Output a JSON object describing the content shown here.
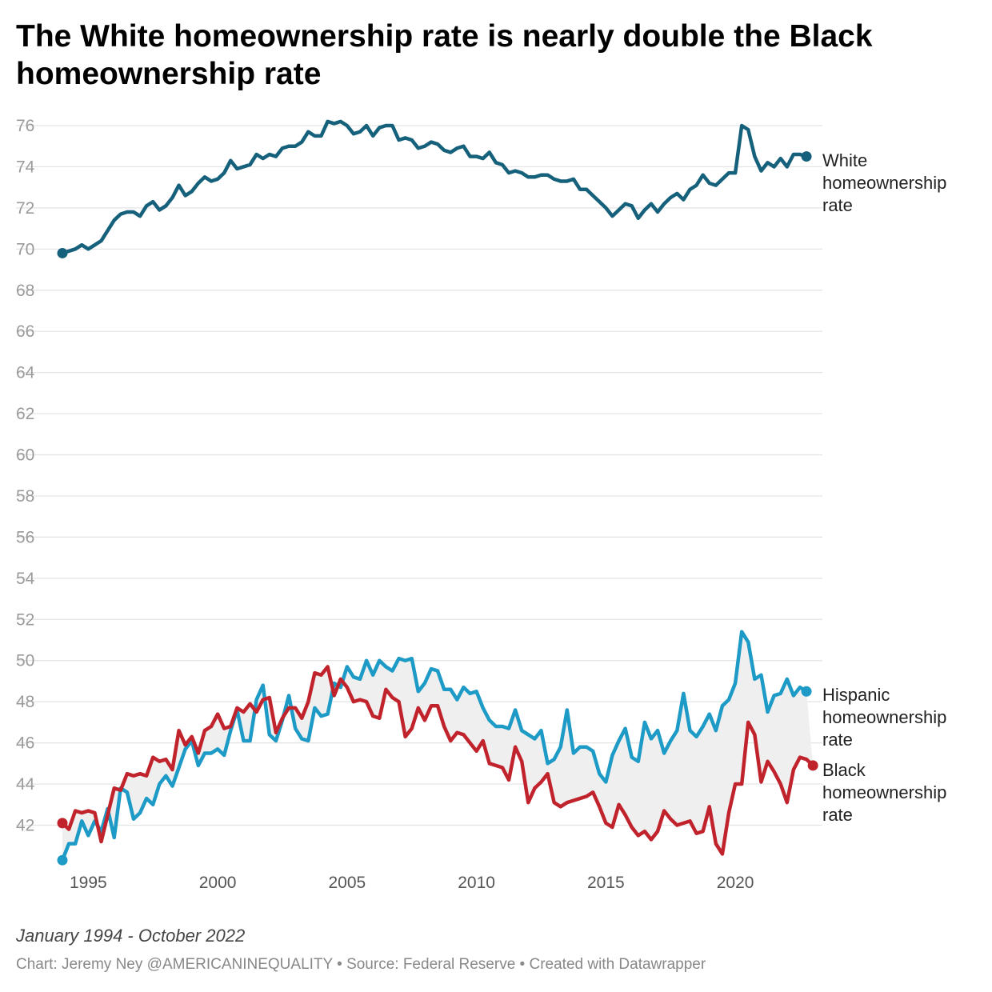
{
  "chart_data": {
    "type": "line",
    "title": "The White homeownership rate is nearly double the Black homeownership rate",
    "subtitle": "January 1994 - October 2022",
    "footer": "Chart: Jeremy Ney @AMERICANINEQUALITY • Source: Federal Reserve • Created with Datawrapper",
    "x_start": 1994.0,
    "x_step": 0.25,
    "xlim": [
      1994.0,
      2022.75
    ],
    "ylim": [
      40.0,
      76.5
    ],
    "y_ticks": [
      42,
      44,
      46,
      48,
      50,
      52,
      54,
      56,
      58,
      60,
      62,
      64,
      66,
      68,
      70,
      72,
      74,
      76
    ],
    "x_ticks": [
      1995,
      2000,
      2005,
      2010,
      2015,
      2020
    ],
    "x_tick_labels": [
      "1995",
      "2000",
      "2005",
      "2010",
      "2015",
      "2020"
    ],
    "gap_fill_between": [
      "Hispanic homeownership rate",
      "Black homeownership rate"
    ],
    "series": [
      {
        "name": "White homeownership rate",
        "label_lines": [
          "White",
          "homeownership",
          "rate"
        ],
        "color": "#15607a",
        "values": [
          69.8,
          69.9,
          70.0,
          70.2,
          70.0,
          70.2,
          70.4,
          70.9,
          71.4,
          71.7,
          71.8,
          71.8,
          71.6,
          72.1,
          72.3,
          71.9,
          72.1,
          72.5,
          73.1,
          72.6,
          72.8,
          73.2,
          73.5,
          73.3,
          73.4,
          73.7,
          74.3,
          73.9,
          74.0,
          74.1,
          74.6,
          74.4,
          74.6,
          74.5,
          74.9,
          75.0,
          75.0,
          75.2,
          75.7,
          75.5,
          75.5,
          76.2,
          76.1,
          76.2,
          76.0,
          75.6,
          75.7,
          76.0,
          75.5,
          75.9,
          76.0,
          76.0,
          75.3,
          75.4,
          75.3,
          74.9,
          75.0,
          75.2,
          75.1,
          74.8,
          74.7,
          74.9,
          75.0,
          74.5,
          74.5,
          74.4,
          74.7,
          74.2,
          74.1,
          73.7,
          73.8,
          73.7,
          73.5,
          73.5,
          73.6,
          73.6,
          73.4,
          73.3,
          73.3,
          73.4,
          72.9,
          72.9,
          72.6,
          72.3,
          72.0,
          71.6,
          71.9,
          72.2,
          72.1,
          71.5,
          71.9,
          72.2,
          71.8,
          72.2,
          72.5,
          72.7,
          72.4,
          72.9,
          73.1,
          73.6,
          73.2,
          73.1,
          73.4,
          73.7,
          73.7,
          76.0,
          75.8,
          74.5,
          73.8,
          74.2,
          74.0,
          74.4,
          74.0,
          74.6,
          74.6,
          74.5
        ]
      },
      {
        "name": "Hispanic homeownership rate",
        "label_lines": [
          "Hispanic",
          "homeownership",
          "rate"
        ],
        "color": "#1d9ac5",
        "values": [
          40.3,
          41.1,
          41.1,
          42.2,
          41.5,
          42.2,
          41.7,
          42.8,
          41.4,
          43.8,
          43.6,
          42.3,
          42.6,
          43.3,
          43.0,
          44.0,
          44.4,
          43.9,
          44.8,
          45.7,
          46.1,
          44.9,
          45.5,
          45.5,
          45.7,
          45.4,
          46.6,
          47.6,
          46.1,
          46.1,
          48.1,
          48.8,
          46.4,
          46.1,
          47.1,
          48.3,
          46.7,
          46.2,
          46.1,
          47.7,
          47.3,
          47.4,
          48.9,
          48.7,
          49.7,
          49.2,
          49.1,
          50.0,
          49.3,
          50.0,
          49.7,
          49.5,
          50.1,
          50.0,
          50.1,
          48.5,
          48.9,
          49.6,
          49.5,
          48.6,
          48.6,
          48.1,
          48.7,
          48.4,
          48.5,
          47.7,
          47.1,
          46.8,
          46.8,
          46.7,
          47.6,
          46.6,
          46.4,
          46.2,
          46.6,
          45.0,
          45.2,
          45.8,
          47.6,
          45.5,
          45.8,
          45.8,
          45.6,
          44.5,
          44.1,
          45.4,
          46.1,
          46.7,
          45.3,
          45.1,
          47.0,
          46.2,
          46.6,
          45.5,
          46.1,
          46.6,
          48.4,
          46.6,
          46.3,
          46.8,
          47.4,
          46.6,
          47.8,
          48.1,
          48.9,
          51.4,
          50.9,
          49.1,
          49.3,
          47.5,
          48.3,
          48.4,
          49.1,
          48.3,
          48.7,
          48.5
        ]
      },
      {
        "name": "Black homeownership rate",
        "label_lines": [
          "Black",
          "homeownership",
          "rate"
        ],
        "color": "#c0232c",
        "values": [
          42.1,
          41.8,
          42.7,
          42.6,
          42.7,
          42.6,
          41.2,
          42.5,
          43.8,
          43.7,
          44.5,
          44.4,
          44.5,
          44.4,
          45.3,
          45.1,
          45.2,
          44.7,
          46.6,
          45.9,
          46.3,
          45.5,
          46.6,
          46.8,
          47.4,
          46.7,
          46.8,
          47.7,
          47.5,
          47.9,
          47.5,
          48.1,
          48.2,
          46.5,
          47.2,
          47.7,
          47.7,
          47.2,
          48.0,
          49.4,
          49.3,
          49.7,
          48.3,
          49.1,
          48.7,
          48.0,
          48.1,
          48.0,
          47.3,
          47.2,
          48.6,
          48.2,
          48.0,
          46.3,
          46.7,
          47.7,
          47.1,
          47.8,
          47.8,
          46.8,
          46.1,
          46.5,
          46.4,
          46.0,
          45.6,
          46.1,
          45.0,
          44.9,
          44.8,
          44.2,
          45.8,
          45.1,
          43.1,
          43.8,
          44.1,
          44.5,
          43.1,
          42.9,
          43.1,
          43.2,
          43.3,
          43.4,
          43.6,
          42.9,
          42.1,
          41.9,
          43.0,
          42.5,
          41.9,
          41.5,
          41.7,
          41.3,
          41.7,
          42.7,
          42.3,
          42.0,
          42.1,
          42.2,
          41.6,
          41.7,
          42.9,
          41.1,
          40.6,
          42.6,
          44.0,
          44.0,
          47.0,
          46.4,
          44.1,
          45.1,
          44.6,
          44.0,
          43.1,
          44.7,
          45.3,
          45.2,
          44.9
        ]
      }
    ]
  }
}
